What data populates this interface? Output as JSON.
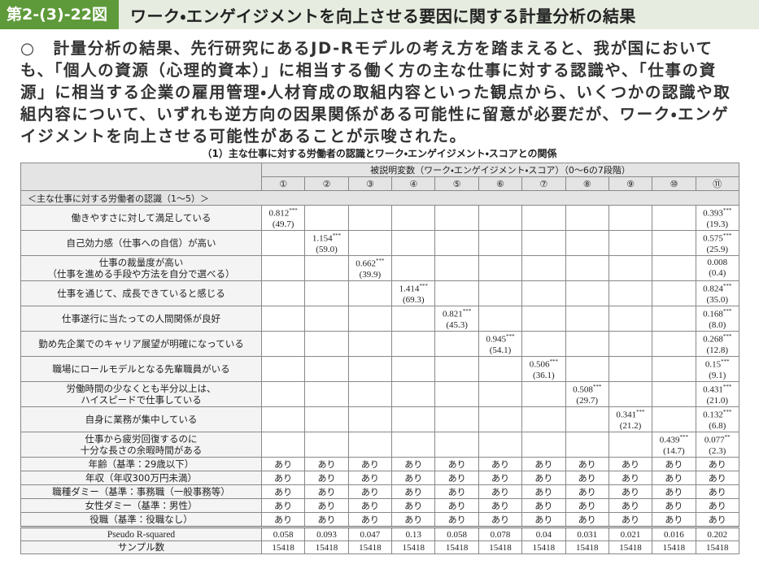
{
  "header": {
    "label": "第2-(3)-22図",
    "title": "ワーク・エンゲイジメントを向上させる要因に関する計量分析の結果"
  },
  "body": {
    "bullet": "○",
    "text": "計量分析の結果、先行研究にあるJD-Rモデルの考え方を踏まえると、我が国においても、「個人の資源（心理的資本）」に相当する働く方の主な仕事に対する認識や、「仕事の資源」に相当する企業の雇用管理・人材育成の取組内容といった観点から、いくつかの認識や取組内容について、いずれも逆方向の因果関係がある可能性に留意が必要だが、ワーク・エンゲイジメントを向上させる可能性があることが示唆された。"
  },
  "table": {
    "caption": "（1）主な仕事に対する労働者の認識とワーク・エンゲイジメント・スコアとの関係",
    "dependent_variable": "被説明変数（ワーク・エンゲイジメント・スコア）（0～6の7段階）",
    "columns": [
      "①",
      "②",
      "③",
      "④",
      "⑤",
      "⑥",
      "⑦",
      "⑧",
      "⑨",
      "⑩",
      "⑪"
    ],
    "section": "＜主な仕事に対する労働者の認識（1～5）＞",
    "rows": [
      {
        "label": "働きやすさに対して満足している",
        "cells": [
          {
            "coef": 0.812,
            "stars": "***",
            "t": "(49.7)"
          },
          null,
          null,
          null,
          null,
          null,
          null,
          null,
          null,
          null,
          {
            "coef": 0.393,
            "stars": "***",
            "t": "(19.3)"
          }
        ]
      },
      {
        "label": "自己効力感（仕事への自信）が高い",
        "cells": [
          null,
          {
            "coef": 1.154,
            "stars": "***",
            "t": "(59.0)"
          },
          null,
          null,
          null,
          null,
          null,
          null,
          null,
          null,
          {
            "coef": 0.575,
            "stars": "***",
            "t": "(25.9)"
          }
        ]
      },
      {
        "label": "仕事の裁量度が高い\n（仕事を進める手段や方法を自分で選べる）",
        "cells": [
          null,
          null,
          {
            "coef": 0.662,
            "stars": "***",
            "t": "(39.9)"
          },
          null,
          null,
          null,
          null,
          null,
          null,
          null,
          {
            "coef": 0.008,
            "t": "(0.4)"
          }
        ]
      },
      {
        "label": "仕事を通じて、成長できていると感じる",
        "cells": [
          null,
          null,
          null,
          {
            "coef": 1.414,
            "stars": "***",
            "t": "(69.3)"
          },
          null,
          null,
          null,
          null,
          null,
          null,
          {
            "coef": 0.824,
            "stars": "***",
            "t": "(35.0)"
          }
        ]
      },
      {
        "label": "仕事遂行に当たっての人間関係が良好",
        "cells": [
          null,
          null,
          null,
          null,
          {
            "coef": 0.821,
            "stars": "***",
            "t": "(45.3)"
          },
          null,
          null,
          null,
          null,
          null,
          {
            "coef": 0.168,
            "stars": "***",
            "t": "(8.0)"
          }
        ]
      },
      {
        "label": "勤め先企業でのキャリア展望が明確になっている",
        "cells": [
          null,
          null,
          null,
          null,
          null,
          {
            "coef": 0.945,
            "stars": "***",
            "t": "(54.1)"
          },
          null,
          null,
          null,
          null,
          {
            "coef": 0.268,
            "stars": "***",
            "t": "(12.8)"
          }
        ]
      },
      {
        "label": "職場にロールモデルとなる先輩職員がいる",
        "cells": [
          null,
          null,
          null,
          null,
          null,
          null,
          {
            "coef": 0.506,
            "stars": "***",
            "t": "(36.1)"
          },
          null,
          null,
          null,
          {
            "coef": 0.15,
            "stars": "***",
            "t": "(9.1)"
          }
        ]
      },
      {
        "label": "労働時間の少なくとも半分以上は、\nハイスピードで仕事している",
        "cells": [
          null,
          null,
          null,
          null,
          null,
          null,
          null,
          {
            "coef": 0.508,
            "stars": "***",
            "t": "(29.7)"
          },
          null,
          null,
          {
            "coef": 0.431,
            "stars": "***",
            "t": "(21.0)"
          }
        ]
      },
      {
        "label": "自身に業務が集中している",
        "cells": [
          null,
          null,
          null,
          null,
          null,
          null,
          null,
          null,
          {
            "coef": 0.341,
            "stars": "***",
            "t": "(21.2)"
          },
          null,
          {
            "coef": 0.132,
            "stars": "***",
            "t": "(6.8)"
          }
        ]
      },
      {
        "label": "仕事から疲労回復するのに\n十分な長さの余暇時間がある",
        "cells": [
          null,
          null,
          null,
          null,
          null,
          null,
          null,
          null,
          null,
          {
            "coef": 0.439,
            "stars": "***",
            "t": "(14.7)"
          },
          {
            "coef": 0.077,
            "stars": "**",
            "t": "(2.3)"
          }
        ]
      }
    ],
    "controls": [
      {
        "label": "年齢（基準：29歳以下）",
        "values": [
          "あり",
          "あり",
          "あり",
          "あり",
          "あり",
          "あり",
          "あり",
          "あり",
          "あり",
          "あり",
          "あり"
        ]
      },
      {
        "label": "年収（年収300万円未満）",
        "values": [
          "あり",
          "あり",
          "あり",
          "あり",
          "あり",
          "あり",
          "あり",
          "あり",
          "あり",
          "あり",
          "あり"
        ]
      },
      {
        "label": "職種ダミー（基準：事務職（一般事務等）",
        "values": [
          "あり",
          "あり",
          "あり",
          "あり",
          "あり",
          "あり",
          "あり",
          "あり",
          "あり",
          "あり",
          "あり"
        ]
      },
      {
        "label": "女性ダミー（基準：男性）",
        "values": [
          "あり",
          "あり",
          "あり",
          "あり",
          "あり",
          "あり",
          "あり",
          "あり",
          "あり",
          "あり",
          "あり"
        ]
      },
      {
        "label": "役職（基準：役職なし）",
        "values": [
          "あり",
          "あり",
          "あり",
          "あり",
          "あり",
          "あり",
          "あり",
          "あり",
          "あり",
          "あり",
          "あり"
        ]
      }
    ],
    "stats": [
      {
        "label": "Pseudo R-squared",
        "values": [
          0.058,
          0.093,
          0.047,
          0.13,
          0.058,
          0.078,
          0.04,
          0.031,
          0.021,
          0.016,
          0.202
        ]
      },
      {
        "label": "サンプル数",
        "values": [
          15418,
          15418,
          15418,
          15418,
          15418,
          15418,
          15418,
          15418,
          15418,
          15418,
          15418
        ]
      }
    ]
  }
}
